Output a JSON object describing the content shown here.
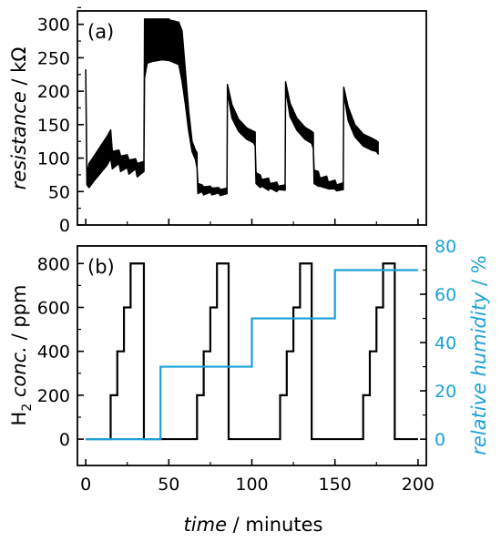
{
  "chart_data": [
    {
      "type": "line",
      "panel_label": "(a)",
      "ylabel_italic": "resistance",
      "ylabel_rest": " / kΩ",
      "ylim": [
        0,
        320
      ],
      "yticks": [
        0,
        50,
        100,
        150,
        200,
        250,
        300
      ],
      "xlim": [
        -5,
        205
      ],
      "xticks": [
        0,
        50,
        100,
        150,
        200
      ],
      "grid": false,
      "series": [
        {
          "color": "#000000",
          "style": "oscillating response band",
          "segments": [
            {
              "upper": [
                [
                  0,
                  232
                ],
                [
                  0.7,
                  75
                ],
                [
                  2,
                  92
                ],
                [
                  5,
                  103
                ],
                [
                  9,
                  118
                ],
                [
                  13,
                  133
                ],
                [
                  15,
                  142
                ],
                [
                  16,
                  110
                ],
                [
                  20,
                  112
                ],
                [
                  21,
                  103
                ],
                [
                  25,
                  105
                ],
                [
                  26,
                  97
                ],
                [
                  30,
                  99
                ],
                [
                  31,
                  92
                ],
                [
                  35,
                  95
                ]
              ],
              "lower": [
                [
                  0,
                  232
                ],
                [
                  0.7,
                  60
                ],
                [
                  2,
                  56
                ],
                [
                  5,
                  66
                ],
                [
                  9,
                  78
                ],
                [
                  13,
                  90
                ],
                [
                  15,
                  100
                ],
                [
                  16,
                  84
                ],
                [
                  20,
                  92
                ],
                [
                  21,
                  80
                ],
                [
                  25,
                  86
                ],
                [
                  26,
                  76
                ],
                [
                  30,
                  84
                ],
                [
                  31,
                  72
                ],
                [
                  35,
                  80
                ]
              ]
            },
            {
              "upper": [
                [
                  35,
                  80
                ],
                [
                  35.4,
                  308
                ],
                [
                  50,
                  308
                ],
                [
                  51,
                  306
                ],
                [
                  53,
                  305
                ],
                [
                  56,
                  303
                ],
                [
                  58,
                  290
                ],
                [
                  60,
                  230
                ],
                [
                  62,
                  170
                ],
                [
                  64,
                  125
                ],
                [
                  66,
                  112
                ],
                [
                  67,
                  108
                ]
              ],
              "lower": [
                [
                  35,
                  80
                ],
                [
                  35.4,
                  220
                ],
                [
                  37,
                  242
                ],
                [
                  41,
                  245
                ],
                [
                  46,
                  247
                ],
                [
                  50,
                  246
                ],
                [
                  53,
                  243
                ],
                [
                  56,
                  240
                ],
                [
                  58,
                  215
                ],
                [
                  60,
                  180
                ],
                [
                  62,
                  140
                ],
                [
                  64,
                  110
                ],
                [
                  66,
                  98
                ],
                [
                  67,
                  86
                ]
              ]
            },
            {
              "upper": [
                [
                  67,
                  86
                ],
                [
                  67.5,
                  62
                ],
                [
                  70,
                  60
                ],
                [
                  71,
                  57
                ],
                [
                  75,
                  58
                ],
                [
                  76,
                  55
                ],
                [
                  80,
                  56
                ],
                [
                  81,
                  53
                ],
                [
                  85,
                  55
                ]
              ],
              "lower": [
                [
                  67,
                  86
                ],
                [
                  67.5,
                  47
                ],
                [
                  70,
                  50
                ],
                [
                  71,
                  45
                ],
                [
                  75,
                  49
                ],
                [
                  76,
                  45
                ],
                [
                  80,
                  48
                ],
                [
                  81,
                  44
                ],
                [
                  85,
                  47
                ]
              ]
            },
            {
              "upper": [
                [
                  85,
                  47
                ],
                [
                  85.3,
                  210
                ],
                [
                  88,
                  180
                ],
                [
                  92,
                  158
                ],
                [
                  97,
                  145
                ],
                [
                  101,
                  140
                ],
                [
                  102,
                  139
                ]
              ],
              "lower": [
                [
                  85,
                  47
                ],
                [
                  85.3,
                  200
                ],
                [
                  88,
                  160
                ],
                [
                  92,
                  140
                ],
                [
                  97,
                  128
                ],
                [
                  101,
                  123
                ],
                [
                  102,
                  118
                ]
              ]
            },
            {
              "upper": [
                [
                  102,
                  118
                ],
                [
                  102.5,
                  78
                ],
                [
                  105,
                  75
                ],
                [
                  106,
                  68
                ],
                [
                  110,
                  70
                ],
                [
                  111,
                  62
                ],
                [
                  115,
                  64
                ],
                [
                  116,
                  58
                ],
                [
                  120,
                  60
                ]
              ],
              "lower": [
                [
                  102,
                  118
                ],
                [
                  102.5,
                  62
                ],
                [
                  105,
                  56
                ],
                [
                  106,
                  58
                ],
                [
                  110,
                  52
                ],
                [
                  111,
                  55
                ],
                [
                  115,
                  50
                ],
                [
                  116,
                  53
                ],
                [
                  120,
                  52
                ]
              ]
            },
            {
              "upper": [
                [
                  120,
                  52
                ],
                [
                  120.3,
                  214
                ],
                [
                  123,
                  182
                ],
                [
                  127,
                  160
                ],
                [
                  132,
                  146
                ],
                [
                  136,
                  140
                ],
                [
                  137,
                  138
                ]
              ],
              "lower": [
                [
                  120,
                  52
                ],
                [
                  120.3,
                  204
                ],
                [
                  123,
                  162
                ],
                [
                  127,
                  142
                ],
                [
                  132,
                  128
                ],
                [
                  136,
                  122
                ],
                [
                  137,
                  114
                ]
              ]
            },
            {
              "upper": [
                [
                  137,
                  114
                ],
                [
                  137.5,
                  82
                ],
                [
                  140,
                  80
                ],
                [
                  141,
                  70
                ],
                [
                  145,
                  73
                ],
                [
                  146,
                  64
                ],
                [
                  150,
                  67
                ],
                [
                  151,
                  60
                ],
                [
                  155,
                  63
                ]
              ],
              "lower": [
                [
                  137,
                  114
                ],
                [
                  137.5,
                  62
                ],
                [
                  140,
                  58
                ],
                [
                  141,
                  58
                ],
                [
                  145,
                  55
                ],
                [
                  146,
                  54
                ],
                [
                  150,
                  54
                ],
                [
                  151,
                  51
                ],
                [
                  155,
                  53
                ]
              ]
            },
            {
              "upper": [
                [
                  155,
                  53
                ],
                [
                  155.3,
                  206
                ],
                [
                  158,
                  176
                ],
                [
                  162,
                  150
                ],
                [
                  167,
                  136
                ],
                [
                  172,
                  130
                ],
                [
                  175,
                  126
                ],
                [
                  176,
                  124
                ]
              ],
              "lower": [
                [
                  155,
                  53
                ],
                [
                  155.3,
                  196
                ],
                [
                  158,
                  156
                ],
                [
                  162,
                  132
                ],
                [
                  167,
                  118
                ],
                [
                  172,
                  112
                ],
                [
                  175,
                  110
                ],
                [
                  176,
                  106
                ]
              ]
            }
          ]
        }
      ]
    },
    {
      "type": "line",
      "panel_label": "(b)",
      "ylabel_left_main": "H",
      "ylabel_left_sub": "2",
      "ylabel_left_italic": " conc.",
      "ylabel_left_rest": " / ppm",
      "ylabel_right_italic": "relative humidity",
      "ylabel_right_rest": " / %",
      "ylim_left": [
        -120,
        880
      ],
      "ylim_right": [
        -10.9,
        80
      ],
      "yticks_left": [
        0,
        200,
        400,
        600,
        800
      ],
      "yticks_right": [
        0,
        20,
        40,
        60,
        80
      ],
      "xlabel_italic": "time",
      "xlabel_rest": " / minutes",
      "xlim": [
        -5,
        205
      ],
      "xticks": [
        0,
        50,
        100,
        150,
        200
      ],
      "grid": false,
      "series": [
        {
          "axis": "left",
          "color": "#000000",
          "x": [
            0,
            15,
            15,
            19,
            19,
            23,
            23,
            27,
            27,
            31,
            31,
            35,
            35,
            67,
            67,
            71,
            71,
            75,
            75,
            79,
            79,
            83,
            83,
            86,
            86,
            117,
            117,
            121,
            121,
            125,
            125,
            129,
            129,
            133,
            133,
            136,
            136,
            167,
            167,
            171,
            171,
            175,
            175,
            179,
            179,
            183,
            183,
            186,
            186,
            200
          ],
          "y": [
            0,
            0,
            200,
            200,
            400,
            400,
            600,
            600,
            800,
            800,
            800,
            800,
            0,
            0,
            200,
            200,
            400,
            400,
            600,
            600,
            800,
            800,
            800,
            800,
            0,
            0,
            200,
            200,
            400,
            400,
            600,
            600,
            800,
            800,
            800,
            800,
            0,
            0,
            200,
            200,
            400,
            400,
            600,
            600,
            800,
            800,
            800,
            800,
            0,
            0
          ]
        },
        {
          "axis": "right",
          "color": "#1ba0d7",
          "x": [
            0,
            45,
            45,
            100,
            100,
            150,
            150,
            200
          ],
          "y": [
            0,
            0,
            30,
            30,
            50,
            50,
            70,
            70
          ]
        }
      ]
    }
  ]
}
